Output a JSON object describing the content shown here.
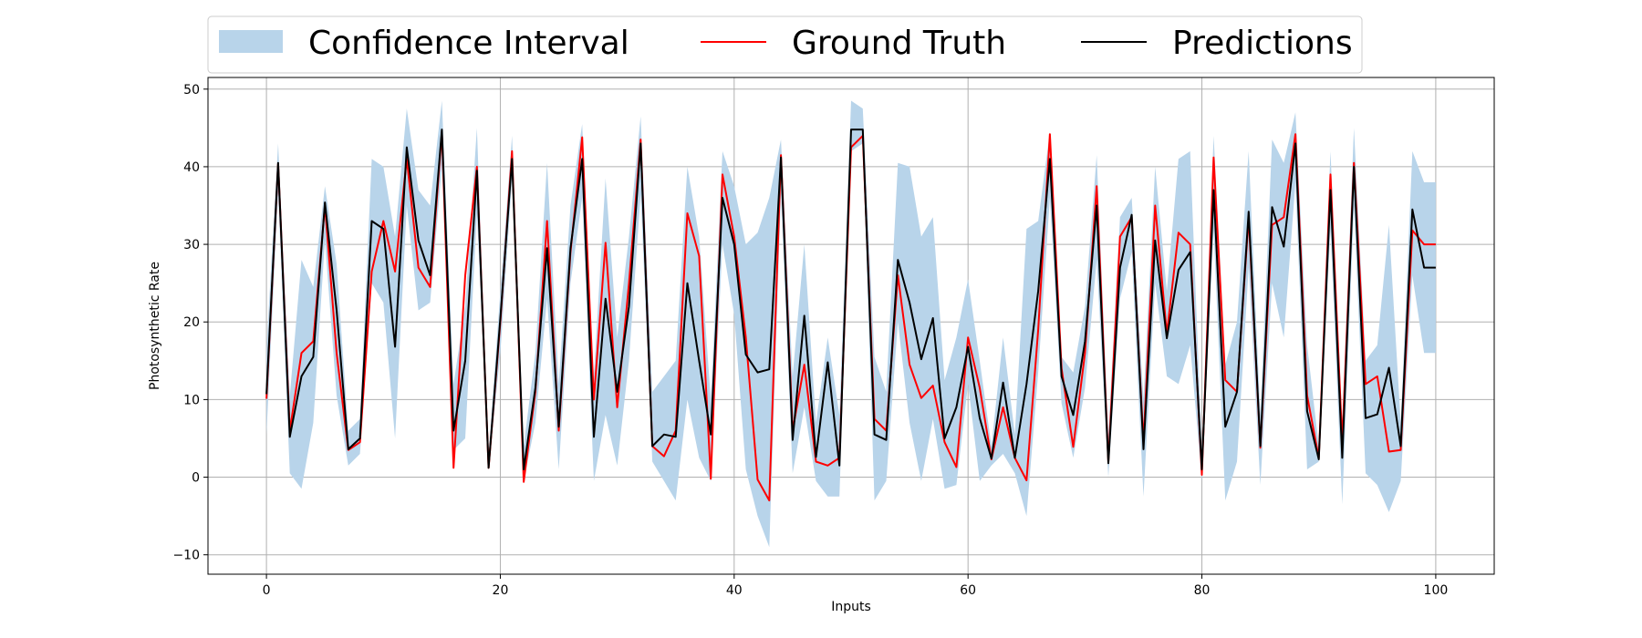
{
  "chart_data": {
    "type": "line",
    "xlabel": "Inputs",
    "ylabel": "Photosynthetic Rate",
    "xlim": [
      -5,
      105
    ],
    "ylim": [
      -12.5,
      51.5
    ],
    "xticks": [
      0,
      20,
      40,
      60,
      80,
      100
    ],
    "yticks": [
      -10,
      0,
      10,
      20,
      30,
      40,
      50
    ],
    "grid": true,
    "legend_position": "top",
    "legend": [
      {
        "label": "Confidence Interval",
        "kind": "band",
        "color": "#b8d4ea"
      },
      {
        "label": "Ground Truth",
        "kind": "line",
        "color": "#ff0000"
      },
      {
        "label": "Predictions",
        "kind": "line",
        "color": "#000000"
      }
    ],
    "x": [
      0,
      1,
      2,
      3,
      4,
      5,
      6,
      7,
      8,
      9,
      10,
      11,
      12,
      13,
      14,
      15,
      16,
      17,
      18,
      19,
      20,
      21,
      22,
      23,
      24,
      25,
      26,
      27,
      28,
      29,
      30,
      31,
      32,
      33,
      34,
      35,
      36,
      37,
      38,
      39,
      40,
      41,
      42,
      43,
      44,
      45,
      46,
      47,
      48,
      49,
      50,
      51,
      52,
      53,
      54,
      55,
      56,
      57,
      58,
      59,
      60,
      61,
      62,
      63,
      64,
      65,
      66,
      67,
      68,
      69,
      70,
      71,
      72,
      73,
      74,
      75,
      76,
      77,
      78,
      79,
      80,
      81,
      82,
      83,
      84,
      85,
      86,
      87,
      88,
      89,
      90,
      91,
      92,
      93,
      94,
      95,
      96,
      97,
      98,
      99,
      100
    ],
    "series": [
      {
        "name": "Ground Truth",
        "color": "#ff0000",
        "values": [
          10.1,
          40.4,
          6.0,
          16.0,
          17.5,
          35.0,
          16.0,
          3.5,
          4.5,
          26.5,
          33.0,
          26.5,
          41.0,
          27.0,
          24.5,
          44.5,
          1.2,
          26.0,
          40.0,
          1.2,
          20.0,
          42.0,
          -0.6,
          11.0,
          33.0,
          6.0,
          29.0,
          43.8,
          10.0,
          30.2,
          9.0,
          25.0,
          43.5,
          4.0,
          2.7,
          6.0,
          34.0,
          28.5,
          -0.2,
          39.0,
          31.0,
          18.0,
          -0.3,
          -3.0,
          41.5,
          6.0,
          14.5,
          2.0,
          1.5,
          2.5,
          42.5,
          44.0,
          7.5,
          6.0,
          26.0,
          14.5,
          10.2,
          11.8,
          4.5,
          1.3,
          18.0,
          11.5,
          2.3,
          9.0,
          2.5,
          -0.4,
          19.0,
          44.2,
          14.0,
          3.9,
          16.0,
          37.5,
          2.0,
          31.0,
          33.5,
          4.5,
          35.0,
          18.5,
          31.5,
          30.0,
          0.3,
          41.2,
          12.5,
          11.0,
          33.5,
          3.8,
          32.5,
          33.5,
          44.2,
          10.5,
          2.5,
          39.0,
          4.5,
          40.5,
          12.0,
          13.0,
          3.3,
          3.5,
          31.8,
          30.0,
          30.0
        ]
      },
      {
        "name": "Predictions",
        "color": "#000000",
        "values": [
          10.7,
          40.5,
          5.2,
          13.0,
          15.5,
          35.4,
          21.5,
          3.6,
          5.0,
          33.0,
          32.0,
          16.8,
          42.5,
          30.5,
          26.0,
          44.8,
          6.0,
          15.0,
          39.5,
          1.2,
          20.5,
          41.0,
          1.0,
          11.5,
          29.5,
          6.5,
          29.5,
          41.0,
          5.2,
          23.0,
          11.0,
          22.0,
          43.0,
          4.0,
          5.5,
          5.2,
          25.0,
          15.0,
          5.5,
          36.0,
          30.0,
          15.8,
          13.5,
          13.9,
          41.2,
          4.8,
          20.8,
          2.6,
          14.8,
          1.5,
          44.8,
          44.8,
          5.5,
          4.8,
          28.0,
          22.5,
          15.2,
          20.5,
          5.0,
          9.0,
          16.8,
          7.6,
          2.4,
          12.2,
          2.5,
          12.0,
          24.0,
          41.0,
          13.0,
          8.0,
          17.5,
          35.0,
          1.8,
          27.0,
          33.8,
          3.6,
          30.5,
          17.9,
          26.7,
          29.0,
          1.0,
          37.0,
          6.5,
          11.0,
          34.2,
          4.0,
          34.8,
          29.7,
          43.0,
          8.5,
          2.3,
          37.0,
          2.5,
          40.0,
          7.6,
          8.1,
          14.1,
          4.0,
          34.5,
          27.0,
          27.0
        ]
      }
    ],
    "confidence_interval": {
      "name": "Confidence Interval",
      "color": "#b8d4ea",
      "lower": [
        5.5,
        36.5,
        0.5,
        -1.5,
        7.0,
        30.5,
        10.5,
        1.5,
        3.0,
        25.0,
        22.5,
        5.0,
        35.0,
        21.5,
        22.5,
        40.0,
        3.5,
        5.0,
        34.0,
        1.0,
        16.0,
        38.5,
        -0.5,
        7.0,
        23.0,
        1.0,
        25.0,
        36.0,
        -0.5,
        8.0,
        1.5,
        15.0,
        36.5,
        2.0,
        -0.5,
        -3.0,
        10.0,
        2.5,
        -0.5,
        30.0,
        21.0,
        1.0,
        -5.0,
        -9.0,
        36.5,
        0.5,
        9.0,
        -0.5,
        -2.5,
        -2.5,
        42.0,
        43.0,
        -3.0,
        -0.5,
        20.0,
        7.0,
        -0.5,
        7.5,
        -1.5,
        -1.0,
        12.0,
        -0.5,
        1.5,
        3.0,
        0.5,
        -5.0,
        13.5,
        36.0,
        9.5,
        2.5,
        11.5,
        28.0,
        0.0,
        23.0,
        29.0,
        -2.5,
        25.0,
        13.0,
        12.0,
        17.0,
        -0.5,
        32.0,
        -3.0,
        2.0,
        27.0,
        -1.0,
        25.0,
        18.0,
        38.0,
        1.0,
        2.0,
        32.0,
        -3.5,
        35.0,
        0.5,
        -1.0,
        -4.5,
        -0.5,
        26.0,
        16.0,
        16.0
      ],
      "upper": [
        16.5,
        43.0,
        10.5,
        28.0,
        24.5,
        37.5,
        27.5,
        6.0,
        7.5,
        41.0,
        40.0,
        31.0,
        47.5,
        37.0,
        35.0,
        48.5,
        12.0,
        22.0,
        45.0,
        3.0,
        24.0,
        44.0,
        4.0,
        16.0,
        40.5,
        12.0,
        35.0,
        45.5,
        13.0,
        38.5,
        18.0,
        31.0,
        46.5,
        11.0,
        13.0,
        15.0,
        40.0,
        31.0,
        10.0,
        42.0,
        37.5,
        30.0,
        31.5,
        36.0,
        43.5,
        13.0,
        30.0,
        7.0,
        18.0,
        8.0,
        48.5,
        47.5,
        15.5,
        11.0,
        40.5,
        40.0,
        31.0,
        33.5,
        12.5,
        18.0,
        25.5,
        15.0,
        4.0,
        18.0,
        5.5,
        32.0,
        33.0,
        44.5,
        15.5,
        13.5,
        22.0,
        41.5,
        5.5,
        33.5,
        36.0,
        10.0,
        40.0,
        24.0,
        41.0,
        42.0,
        3.5,
        44.0,
        14.5,
        20.0,
        42.0,
        8.0,
        43.5,
        40.5,
        47.0,
        17.0,
        4.0,
        42.0,
        7.0,
        45.0,
        15.0,
        17.0,
        32.5,
        7.0,
        42.0,
        38.0,
        38.0
      ]
    }
  }
}
